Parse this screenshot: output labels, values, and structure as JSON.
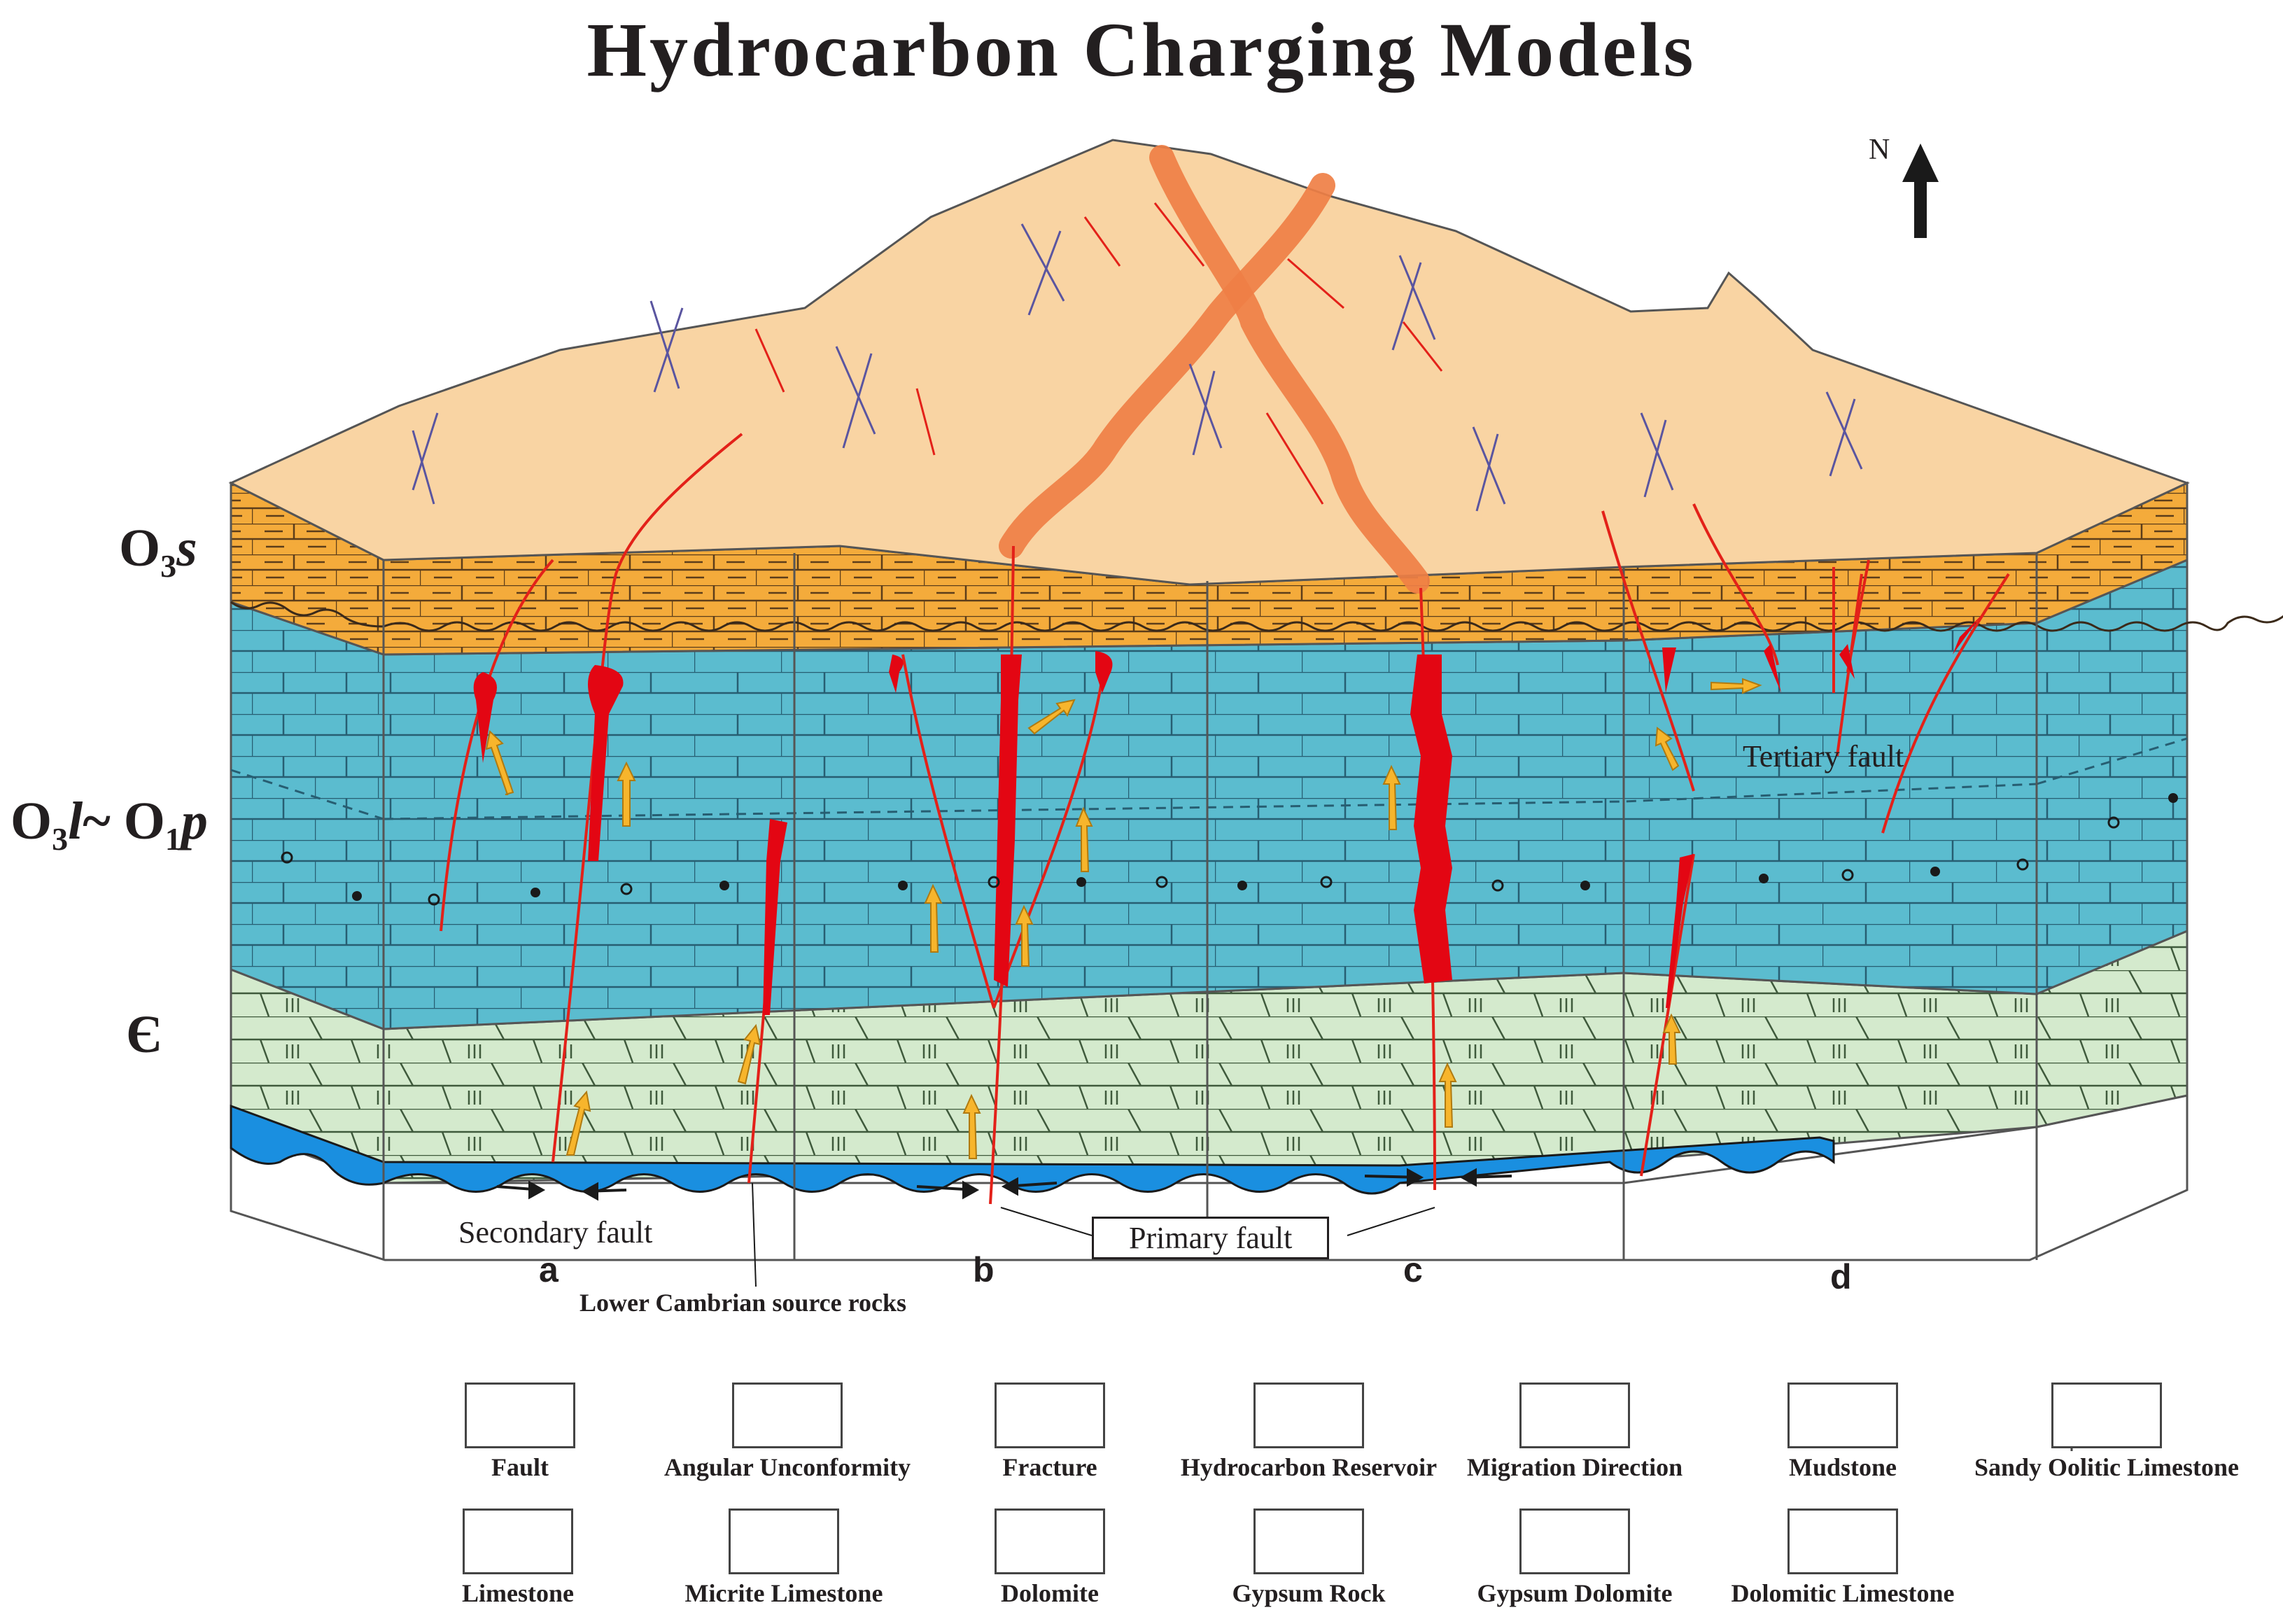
{
  "title": "Hydrocarbon Charging Models",
  "compass": {
    "label": "N"
  },
  "strata": {
    "upper": {
      "main": "O",
      "sub": "3",
      "suffix": "s"
    },
    "middle": {
      "a": "O",
      "a_sub": "3",
      "a_suf": "l",
      "tilde": "~ ",
      "b": "O",
      "b_sub": "1",
      "b_suf": "p"
    },
    "lower": {
      "symbol": "Є"
    }
  },
  "sections": [
    "a",
    "b",
    "c",
    "d"
  ],
  "annotations": {
    "tertiary_fault": "Tertiary  fault",
    "secondary_fault": "Secondary fault",
    "primary_fault": "Primary  fault",
    "source_rocks": "Lower Cambrian source rocks"
  },
  "colors": {
    "top_surface": "#f9d4a3",
    "stratum_O3s": "#f4ab3b",
    "stratum_O3l_O1p": "#5bbccf",
    "stratum_cambrian": "#d4eacd",
    "source_rock": "#1a8fe0",
    "reservoir": "#e30613",
    "fault": "#e32119",
    "fracture": "#5a55a0",
    "migration_arrow": "#f7b52c",
    "big_fault_band": "#ef7f45"
  },
  "legend": [
    {
      "label": "Fault",
      "icon": "fault-icon"
    },
    {
      "label": "Angular Unconformity",
      "icon": "unconformity-icon"
    },
    {
      "label": "Fracture",
      "icon": "fracture-icon"
    },
    {
      "label": "Hydrocarbon Reservoir",
      "icon": "reservoir-icon"
    },
    {
      "label": "Migration Direction",
      "icon": "migration-icon"
    },
    {
      "label": "Mudstone",
      "icon": "mudstone-icon"
    },
    {
      "label": "Sandy Oolitic Limestone",
      "icon": "sandy-oolitic-icon"
    },
    {
      "label": "Limestone",
      "icon": "limestone-icon"
    },
    {
      "label": "Micrite Limestone",
      "icon": "micrite-icon"
    },
    {
      "label": "Dolomite",
      "icon": "dolomite-icon"
    },
    {
      "label": "Gypsum Rock",
      "icon": "gypsum-rock-icon"
    },
    {
      "label": "Gypsum Dolomite",
      "icon": "gypsum-dolomite-icon"
    },
    {
      "label": "Dolomitic Limestone",
      "icon": "dolomitic-limestone-icon"
    }
  ]
}
